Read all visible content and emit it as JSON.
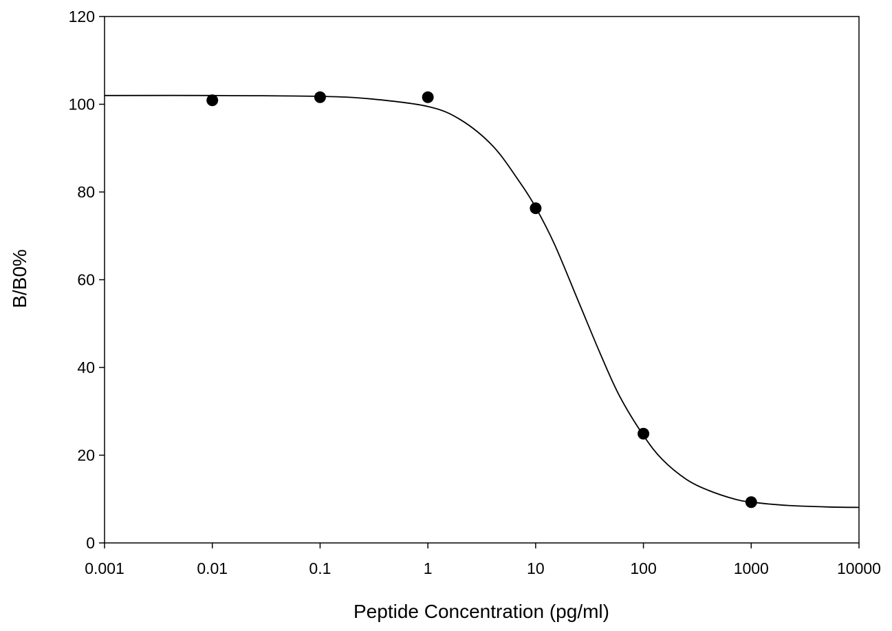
{
  "chart_data": {
    "type": "scatter",
    "title": "",
    "xlabel": "Peptide Concentration (pg/ml)",
    "ylabel": "B/B0%",
    "x_scale": "log",
    "xlim": [
      0.001,
      10000
    ],
    "ylim": [
      0,
      120
    ],
    "grid": false,
    "legend": "none",
    "x_ticks": [
      {
        "value": 0.001,
        "label": "0.001"
      },
      {
        "value": 0.01,
        "label": "0.01"
      },
      {
        "value": 0.1,
        "label": "0.1"
      },
      {
        "value": 1,
        "label": "1"
      },
      {
        "value": 10,
        "label": "10"
      },
      {
        "value": 100,
        "label": "100"
      },
      {
        "value": 1000,
        "label": "1000"
      },
      {
        "value": 10000,
        "label": "10000"
      }
    ],
    "y_ticks": [
      {
        "value": 0,
        "label": "0"
      },
      {
        "value": 20,
        "label": "20"
      },
      {
        "value": 40,
        "label": "40"
      },
      {
        "value": 60,
        "label": "60"
      },
      {
        "value": 80,
        "label": "80"
      },
      {
        "value": 100,
        "label": "100"
      },
      {
        "value": 120,
        "label": "120"
      }
    ],
    "series": [
      {
        "type": "scatter",
        "color": "#000000",
        "points": [
          {
            "x": 0.01,
            "y": 100.9
          },
          {
            "x": 0.1,
            "y": 101.6
          },
          {
            "x": 1,
            "y": 101.6
          },
          {
            "x": 10,
            "y": 76.3
          },
          {
            "x": 100,
            "y": 24.9
          },
          {
            "x": 1000,
            "y": 9.3
          }
        ]
      },
      {
        "type": "line",
        "color": "#000000",
        "points": [
          {
            "x": 0.001,
            "y": 102.0
          },
          {
            "x": 0.01,
            "y": 102.0
          },
          {
            "x": 0.1,
            "y": 101.8
          },
          {
            "x": 0.3,
            "y": 101.2
          },
          {
            "x": 1,
            "y": 99.5
          },
          {
            "x": 2,
            "y": 96.5
          },
          {
            "x": 4,
            "y": 90.5
          },
          {
            "x": 7,
            "y": 82.5
          },
          {
            "x": 10,
            "y": 76.5
          },
          {
            "x": 15,
            "y": 68.0
          },
          {
            "x": 25,
            "y": 55.0
          },
          {
            "x": 40,
            "y": 43.0
          },
          {
            "x": 60,
            "y": 33.5
          },
          {
            "x": 100,
            "y": 24.5
          },
          {
            "x": 150,
            "y": 19.0
          },
          {
            "x": 250,
            "y": 14.5
          },
          {
            "x": 400,
            "y": 12.0
          },
          {
            "x": 700,
            "y": 10.0
          },
          {
            "x": 1000,
            "y": 9.3
          },
          {
            "x": 2000,
            "y": 8.6
          },
          {
            "x": 5000,
            "y": 8.2
          },
          {
            "x": 10000,
            "y": 8.1
          }
        ]
      }
    ]
  }
}
